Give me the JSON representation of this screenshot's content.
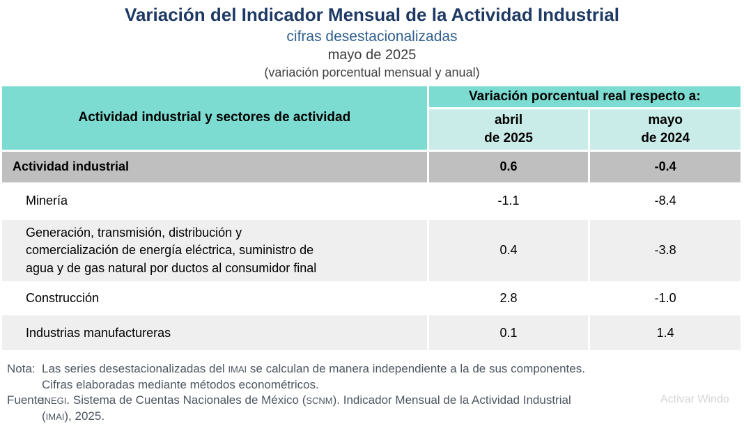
{
  "header": {
    "title": "Variación del Indicador Mensual de la Actividad Industrial",
    "subtitle": "cifras desestacionalizadas",
    "period": "mayo de 2025",
    "unit_note": "(variación porcentual mensual y anual)"
  },
  "table": {
    "header": {
      "activity": "Actividad industrial y sectores de actividad",
      "group": "Variación porcentual real respecto a:",
      "col1": "abril\nde 2025",
      "col2": "mayo\nde 2024"
    },
    "rows": [
      {
        "label": "Actividad industrial",
        "abril": "0.6",
        "mayo": "-0.4"
      },
      {
        "label": "Minería",
        "abril": "-1.1",
        "mayo": "-8.4"
      },
      {
        "label": "Generación, transmisión, distribución y\ncomercialización de energía eléctrica, suministro de\nagua y de gas natural por ductos al consumidor final",
        "abril": "0.4",
        "mayo": "-3.8"
      },
      {
        "label": "Construcción",
        "abril": "2.8",
        "mayo": "-1.0"
      },
      {
        "label": "Industrias manufactureras",
        "abril": "0.1",
        "mayo": "1.4"
      }
    ]
  },
  "chart_data": {
    "type": "table",
    "title": "Variación del Indicador Mensual de la Actividad Industrial",
    "subtitle": "cifras desestacionalizadas, mayo de 2025 (variación porcentual mensual y anual)",
    "group_header": "Variación porcentual real respecto a:",
    "columns": [
      "Actividad industrial y sectores de actividad",
      "abril de 2025",
      "mayo de 2024"
    ],
    "rows": [
      [
        "Actividad industrial",
        0.6,
        -0.4
      ],
      [
        "Minería",
        -1.1,
        -8.4
      ],
      [
        "Generación, transmisión, distribución y comercialización de energía eléctrica, suministro de agua y de gas natural por ductos al consumidor final",
        0.4,
        -3.8
      ],
      [
        "Construcción",
        2.8,
        -1.0
      ],
      [
        "Industrias manufactureras",
        0.1,
        1.4
      ]
    ]
  },
  "notes": {
    "nota": {
      "label": "Nota:",
      "l1a": "Las series desestacionalizadas del ",
      "l1b": "IMAI",
      "l1c": " se calculan de manera independiente a la de sus componentes.",
      "l2": "Cifras elaboradas mediante métodos econométricos."
    },
    "fuente": {
      "label": "Fuente:",
      "l1a": "INEGI",
      "l1b": ". Sistema de Cuentas Nacionales de México (",
      "l1c": "SCNM",
      "l1d": "). Indicador Mensual de la Actividad Industrial",
      "l2a": "(",
      "l2b": "IMAI",
      "l2c": "), 2025."
    }
  },
  "watermark": "Activar Windo",
  "colors": {
    "title_navy": "#1E3A64",
    "subtitle_blue": "#2E5F8E",
    "header_teal": "#7CDCD2",
    "subheader_teal": "#C9ECE8",
    "total_row_gray": "#BFBFBF",
    "alt_row_gray": "#EFEFEF",
    "note_gray": "#4D5560",
    "watermark_gray": "#D4D4D4"
  }
}
